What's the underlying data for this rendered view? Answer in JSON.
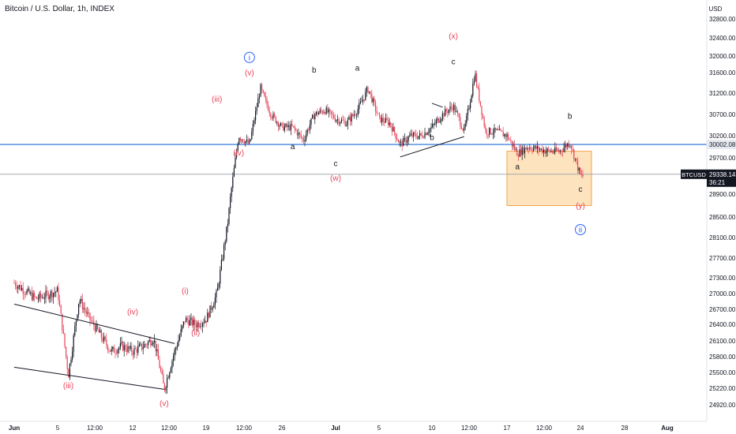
{
  "header": {
    "title": "Bitcoin / U.S. Dollar, 1h, INDEX"
  },
  "colors": {
    "up": "#131722",
    "down": "#e8445a",
    "wave_red": "#e8445a",
    "wave_blue": "#2962ff",
    "wave_black": "#131722",
    "hline": "#1e6bd6",
    "price_line": "#9aa0a6",
    "box_fill": "#fcd9a8",
    "box_stroke": "#f5a34a",
    "trend": "#131722"
  },
  "chart_data": {
    "type": "candlestick",
    "symbol": "BTCUSD",
    "currency": "USD",
    "interval": "1h",
    "y_axis": {
      "labels": [
        "32800.00",
        "32400.00",
        "32000.00",
        "31600.00",
        "31200.00",
        "30700.00",
        "30200.00",
        "29700.00",
        "28900.00",
        "28500.00",
        "28100.00",
        "27700.00",
        "27300.00",
        "27000.00",
        "26700.00",
        "26400.00",
        "26100.00",
        "25800.00",
        "25500.00",
        "25220.00",
        "24920.00"
      ],
      "range": [
        24700,
        33000
      ]
    },
    "x_axis": {
      "labels": [
        "Jun",
        "5",
        "12:00",
        "12",
        "12:00",
        "19",
        "12:00",
        "26",
        "Jul",
        "5",
        "10",
        "12:00",
        "17",
        "12:00",
        "24",
        "28",
        "Aug"
      ],
      "range": [
        "2023-06-01",
        "2023-08-01"
      ]
    },
    "horizontal_levels": [
      {
        "label": "30002.08",
        "value": 30002.08,
        "kind": "support"
      },
      {
        "label": "29338.14",
        "value": 29338.14,
        "kind": "last-price",
        "symbol": "BTCUSD",
        "countdown": "36:21"
      }
    ],
    "target_zone": {
      "from": "2023-07-17",
      "to": "2023-07-25",
      "top": 29850,
      "bottom": 28700
    },
    "price_path": [
      [
        "2023-06-01",
        27200
      ],
      [
        "2023-06-03",
        26900
      ],
      [
        "2023-06-05",
        27050
      ],
      [
        "2023-06-06",
        25450
      ],
      [
        "2023-06-07",
        26900
      ],
      [
        "2023-06-08",
        26500
      ],
      [
        "2023-06-10",
        25900
      ],
      [
        "2023-06-11",
        26000
      ],
      [
        "2023-06-12",
        25900
      ],
      [
        "2023-06-13",
        26000
      ],
      [
        "2023-06-14",
        26150
      ],
      [
        "2023-06-15",
        25200
      ],
      [
        "2023-06-16",
        25900
      ],
      [
        "2023-06-17",
        26500
      ],
      [
        "2023-06-18",
        26400
      ],
      [
        "2023-06-19",
        26500
      ],
      [
        "2023-06-20",
        27000
      ],
      [
        "2023-06-21",
        28400
      ],
      [
        "2023-06-22",
        30200
      ],
      [
        "2023-06-23",
        30000
      ],
      [
        "2023-06-24",
        31300
      ],
      [
        "2023-06-25",
        30700
      ],
      [
        "2023-06-26",
        30400
      ],
      [
        "2023-06-27",
        30400
      ],
      [
        "2023-06-28",
        30100
      ],
      [
        "2023-06-29",
        30700
      ],
      [
        "2023-06-30",
        30800
      ],
      [
        "2023-07-01",
        30600
      ],
      [
        "2023-07-02",
        30500
      ],
      [
        "2023-07-03",
        30800
      ],
      [
        "2023-07-04",
        31300
      ],
      [
        "2023-07-05",
        30600
      ],
      [
        "2023-07-06",
        30500
      ],
      [
        "2023-07-07",
        30000
      ],
      [
        "2023-07-08",
        30200
      ],
      [
        "2023-07-09",
        30200
      ],
      [
        "2023-07-10",
        30400
      ],
      [
        "2023-07-11",
        30700
      ],
      [
        "2023-07-12",
        30900
      ],
      [
        "2023-07-13",
        30300
      ],
      [
        "2023-07-14",
        31600
      ],
      [
        "2023-07-15",
        30300
      ],
      [
        "2023-07-16",
        30300
      ],
      [
        "2023-07-17",
        30200
      ],
      [
        "2023-07-18",
        29800
      ],
      [
        "2023-07-19",
        29950
      ],
      [
        "2023-07-20",
        29900
      ],
      [
        "2023-07-21",
        29850
      ],
      [
        "2023-07-22",
        29850
      ],
      [
        "2023-07-23",
        30050
      ],
      [
        "2023-07-24",
        29300
      ]
    ],
    "trendlines": [
      {
        "from": [
          "2023-06-01",
          26800
        ],
        "to": [
          "2023-06-16",
          26050
        ]
      },
      {
        "from": [
          "2023-06-01",
          25600
        ],
        "to": [
          "2023-06-15",
          25200
        ]
      },
      {
        "from": [
          "2023-07-07",
          29720
        ],
        "to": [
          "2023-07-13",
          30180
        ]
      },
      {
        "from": [
          "2023-07-10",
          30960
        ],
        "to": [
          "2023-07-11",
          30870
        ]
      }
    ],
    "wave_labels": [
      {
        "text": "(iii)",
        "date": "2023-06-06",
        "price": 25220,
        "color": "red"
      },
      {
        "text": "(iv)",
        "date": "2023-06-12",
        "price": 26600,
        "color": "red"
      },
      {
        "text": "(v)",
        "date": "2023-06-15",
        "price": 24900,
        "color": "red"
      },
      {
        "text": "(i)",
        "date": "2023-06-17",
        "price": 27000,
        "color": "red"
      },
      {
        "text": "(ii)",
        "date": "2023-06-18",
        "price": 26200,
        "color": "red"
      },
      {
        "text": "(iii)",
        "date": "2023-06-20",
        "price": 31000,
        "color": "red"
      },
      {
        "text": "(iv)",
        "date": "2023-06-22",
        "price": 29750,
        "color": "red"
      },
      {
        "text": "(v)",
        "date": "2023-06-23",
        "price": 31550,
        "color": "red"
      },
      {
        "text": "i",
        "date": "2023-06-23",
        "price": 31900,
        "color": "blue",
        "circled": true
      },
      {
        "text": "a",
        "date": "2023-06-27",
        "price": 29900,
        "color": "black"
      },
      {
        "text": "b",
        "date": "2023-06-29",
        "price": 31600,
        "color": "black"
      },
      {
        "text": "c",
        "date": "2023-07-01",
        "price": 29520,
        "color": "black"
      },
      {
        "text": "(w)",
        "date": "2023-07-01",
        "price": 29200,
        "color": "red"
      },
      {
        "text": "a",
        "date": "2023-07-03",
        "price": 31650,
        "color": "black"
      },
      {
        "text": "b",
        "date": "2023-07-10",
        "price": 30100,
        "color": "black"
      },
      {
        "text": "c",
        "date": "2023-07-12",
        "price": 31800,
        "color": "black"
      },
      {
        "text": "(x)",
        "date": "2023-07-12",
        "price": 32380,
        "color": "red"
      },
      {
        "text": "a",
        "date": "2023-07-18",
        "price": 29450,
        "color": "black"
      },
      {
        "text": "b",
        "date": "2023-07-23",
        "price": 30600,
        "color": "black"
      },
      {
        "text": "c",
        "date": "2023-07-24",
        "price": 28950,
        "color": "black"
      },
      {
        "text": "(y)",
        "date": "2023-07-24",
        "price": 28650,
        "color": "red"
      },
      {
        "text": "ii",
        "date": "2023-07-24",
        "price": 28200,
        "color": "blue",
        "circled": true
      }
    ]
  }
}
